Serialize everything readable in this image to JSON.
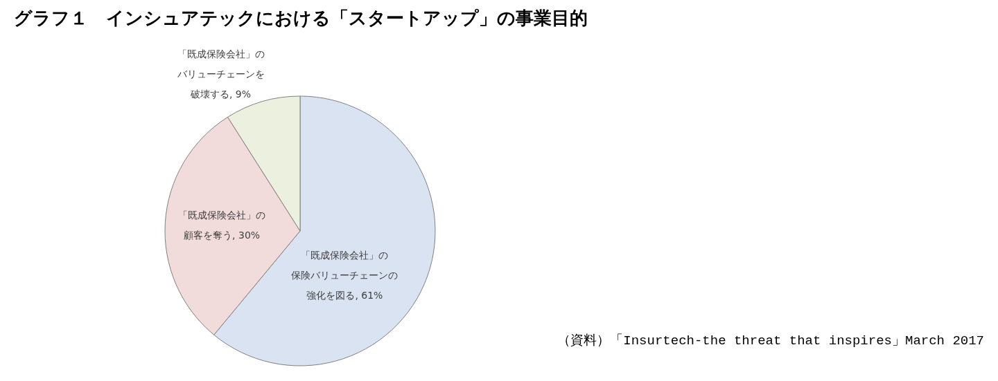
{
  "chart_data": {
    "type": "pie",
    "title": "グラフ１　インシュアテックにおける「スタートアップ」の事業目的",
    "categories": [
      "「既成保険会社」の保険バリューチェーンの強化を図る",
      "「既成保険会社」の顧客を奪う",
      "「既成保険会社」のバリューチェーンを破壊する"
    ],
    "values": [
      61,
      30,
      9
    ],
    "colors": [
      "#dae3f1",
      "#f2dcdb",
      "#ebf1de"
    ],
    "value_labels": [
      "61%",
      "30%",
      "9%"
    ],
    "annotations": [
      "（資料）「Insurtech-the threat that inspires」March 2017"
    ]
  }
}
